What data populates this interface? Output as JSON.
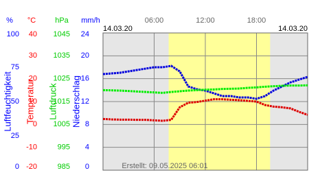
{
  "chart_data": {
    "type": "line",
    "date_labels": [
      "14.03.20",
      "14.03.20"
    ],
    "created": "Erstellt: 09.05.2025 06:01",
    "xlim": [
      0,
      24
    ],
    "xticks": [
      {
        "value": 6,
        "label": "06:00"
      },
      {
        "value": 12,
        "label": "12:00"
      },
      {
        "value": 18,
        "label": "18:00"
      }
    ],
    "daylight": [
      7.7,
      19.6
    ],
    "grid": true,
    "axes": [
      {
        "unit": "%",
        "title": "Luftfeuchtigkeit",
        "color": "#0000ff",
        "lim": [
          0,
          100
        ],
        "ticks": [
          100,
          75,
          50,
          25,
          0
        ]
      },
      {
        "unit": "°C",
        "title": "Temperatur",
        "color": "#ff0000",
        "lim": [
          -20,
          40
        ],
        "ticks": [
          40,
          30,
          20,
          10,
          0,
          -10,
          -20
        ]
      },
      {
        "unit": "hPa",
        "title": "Luftdruck",
        "color": "#00cc00",
        "lim": [
          985,
          1045
        ],
        "ticks": [
          1045,
          1035,
          1025,
          1015,
          1005,
          995,
          985
        ]
      },
      {
        "unit": "mm/h",
        "title": "Niederschlag",
        "color": "#0000ff",
        "lim": [
          0,
          24
        ],
        "ticks": [
          24,
          20,
          16,
          12,
          8,
          4,
          0
        ]
      }
    ],
    "x": [
      0,
      1,
      2,
      3,
      4,
      5,
      6,
      7,
      8,
      9,
      10,
      11,
      12,
      13,
      14,
      15,
      16,
      17,
      18,
      19,
      20,
      21,
      22,
      23,
      24
    ],
    "series": [
      {
        "axis": 0,
        "color": "#0000dd",
        "values": [
          70,
          70.5,
          71,
          72,
          73,
          74,
          75,
          75,
          76,
          72,
          61,
          59,
          58,
          56,
          54,
          54,
          53,
          53,
          52,
          54,
          58,
          61,
          64,
          66,
          68
        ]
      },
      {
        "axis": 1,
        "color": "#dd0000",
        "values": [
          2.4,
          2.2,
          2.1,
          2.1,
          2.0,
          2.0,
          1.8,
          1.6,
          2.0,
          7.5,
          9.5,
          9.8,
          10.4,
          11,
          11,
          10.8,
          10.6,
          10.3,
          10.0,
          8.5,
          7.8,
          7.5,
          7.0,
          5.5,
          4.2
        ]
      },
      {
        "axis": 2,
        "color": "#00ee00",
        "values": [
          1020.0,
          1019.9,
          1019.8,
          1019.6,
          1019.4,
          1019.2,
          1019.0,
          1018.8,
          1019.2,
          1019.5,
          1019.8,
          1020.0,
          1020.2,
          1020.3,
          1020.5,
          1020.6,
          1020.7,
          1021.0,
          1021.2,
          1021.5,
          1021.7,
          1021.9,
          1022.0,
          1022.0,
          1022.1
        ]
      }
    ]
  }
}
